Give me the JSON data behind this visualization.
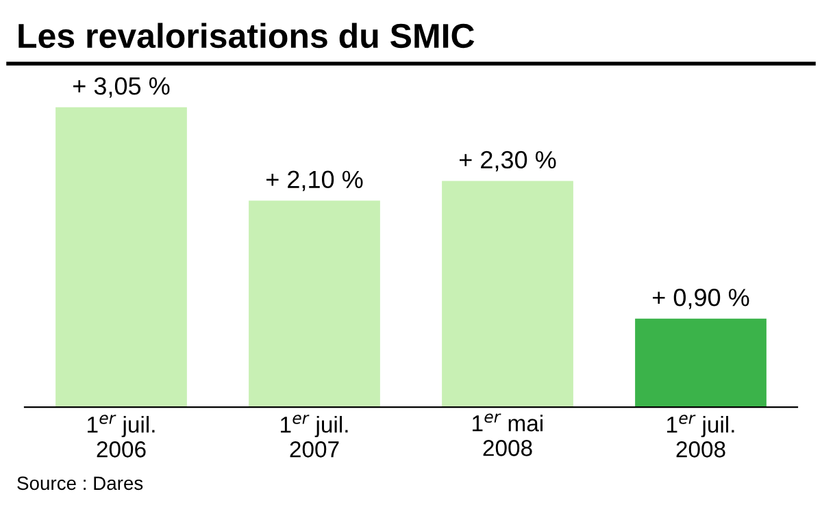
{
  "chart_data": {
    "type": "bar",
    "title": "Les revalorisations du SMIC",
    "categories": [
      "1$^{er}$ juil.\n2006",
      "1$^{er}$ juil.\n2007",
      "1$^{er}$ mai\n2008",
      "1$^{er}$ juil.\n2008"
    ],
    "values": [
      3.05,
      2.1,
      2.3,
      0.9
    ],
    "colors": [
      "#c8f0b4",
      "#c8f0b4",
      "#c8f0b4",
      "#3bb34a"
    ],
    "value_labels": [
      "+ 3,05 %",
      "+ 2,10 %",
      "+ 2,30 %",
      "+ 0,90 %"
    ],
    "annotations": [
      "Source : Dares"
    ],
    "grid": false,
    "legend": false
  }
}
